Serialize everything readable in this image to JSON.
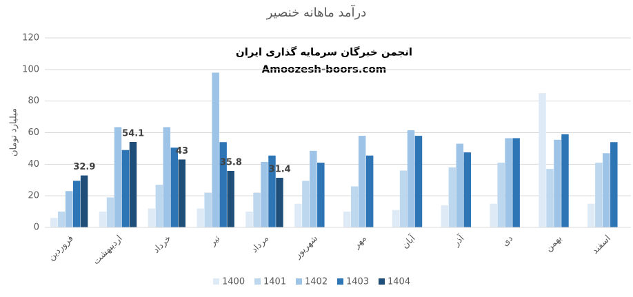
{
  "chart_data": {
    "type": "bar",
    "title": "درآمد ماهانه خنصیر",
    "y_label": "میلیارد تومان",
    "annotations": [
      "انجمن خبرگان سرمایه گذاری ایران",
      "Amoozesh-boors.com"
    ],
    "categories": [
      "فروردین",
      "اردیبهشت",
      "خرداد",
      "تیر",
      "مرداد",
      "شهریور",
      "مهر",
      "آبان",
      "آذر",
      "دی",
      "بهمن",
      "اسفند"
    ],
    "series": [
      {
        "name": "1400",
        "color": "#deebf7",
        "values": [
          6,
          10,
          12,
          12,
          10,
          15,
          10,
          11,
          14,
          15,
          85,
          15
        ]
      },
      {
        "name": "1401",
        "color": "#bdd7ee",
        "values": [
          10,
          19,
          27,
          22,
          22,
          29.5,
          26,
          36,
          38,
          41,
          37,
          41
        ]
      },
      {
        "name": "1402",
        "color": "#9dc3e6",
        "values": [
          23,
          63.5,
          63.5,
          98,
          41.5,
          48.5,
          58,
          61.5,
          53,
          56.5,
          55.5,
          47
        ]
      },
      {
        "name": "1403",
        "color": "#2e75b6",
        "values": [
          29.5,
          49,
          50.5,
          54,
          45.5,
          41,
          45.5,
          58,
          47.5,
          56.5,
          59,
          54
        ]
      },
      {
        "name": "1404",
        "color": "#1f4e79",
        "values": [
          32.9,
          54.1,
          43,
          35.8,
          31.4,
          null,
          null,
          null,
          null,
          null,
          null,
          null
        ],
        "show_labels": true
      }
    ],
    "ylim": [
      0,
      120
    ],
    "yticks": [
      0,
      20,
      40,
      60,
      80,
      100,
      120
    ],
    "grid": true
  }
}
